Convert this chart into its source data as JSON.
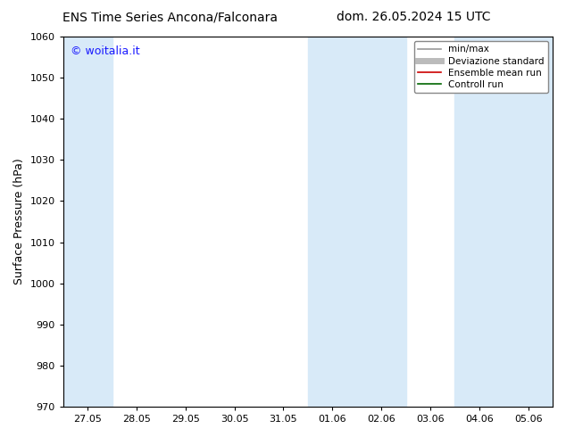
{
  "title_left": "ENS Time Series Ancona/Falconara",
  "title_right": "dom. 26.05.2024 15 UTC",
  "ylabel": "Surface Pressure (hPa)",
  "ylim": [
    970,
    1060
  ],
  "yticks": [
    970,
    980,
    990,
    1000,
    1010,
    1020,
    1030,
    1040,
    1050,
    1060
  ],
  "xtick_labels": [
    "27.05",
    "28.05",
    "29.05",
    "30.05",
    "31.05",
    "01.06",
    "02.06",
    "03.06",
    "04.06",
    "05.06"
  ],
  "watermark": "© woitalia.it",
  "watermark_color": "#1a1aff",
  "bg_color": "#ffffff",
  "shaded_color": "#d8eaf8",
  "shaded_index_ranges": [
    [
      -0.5,
      0.5
    ],
    [
      4.5,
      6.5
    ],
    [
      7.5,
      9.5
    ]
  ],
  "legend_entries": [
    {
      "label": "min/max",
      "color": "#999999",
      "lw": 1.2
    },
    {
      "label": "Deviazione standard",
      "color": "#bbbbbb",
      "lw": 5
    },
    {
      "label": "Ensemble mean run",
      "color": "#cc0000",
      "lw": 1.2
    },
    {
      "label": "Controll run",
      "color": "#006600",
      "lw": 1.2
    }
  ],
  "title_fontsize": 10,
  "axis_fontsize": 8,
  "legend_fontsize": 7.5,
  "watermark_fontsize": 9
}
